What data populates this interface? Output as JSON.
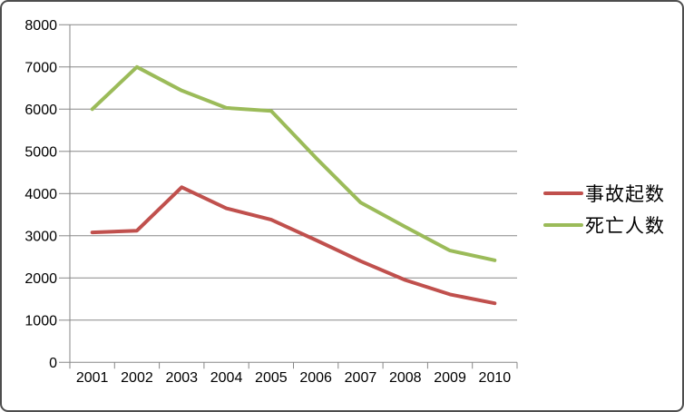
{
  "chart_data": {
    "type": "line",
    "title": "",
    "categories": [
      "2001",
      "2002",
      "2003",
      "2004",
      "2005",
      "2006",
      "2007",
      "2008",
      "2009",
      "2010"
    ],
    "series": [
      {
        "name": "事故起数",
        "color": "#C0504D",
        "values": [
          3080,
          3120,
          4150,
          3650,
          3380,
          2900,
          2400,
          1950,
          1610,
          1400
        ]
      },
      {
        "name": "死亡人数",
        "color": "#9BBB59",
        "values": [
          6000,
          7000,
          6440,
          6030,
          5960,
          4850,
          3790,
          3210,
          2650,
          2420
        ]
      }
    ],
    "xlabel": "",
    "ylabel": "",
    "ylim": [
      0,
      8000
    ],
    "ytick_interval": 1000,
    "yticks": [
      "0",
      "1000",
      "2000",
      "3000",
      "4000",
      "5000",
      "6000",
      "7000",
      "8000"
    ],
    "grid": true,
    "legend_position": "right"
  },
  "colors": {
    "background": "#FFFFFF",
    "frame_border": "#4D4D4D",
    "gridline": "#878787",
    "axis": "#878787",
    "tick_label": "#000000"
  }
}
